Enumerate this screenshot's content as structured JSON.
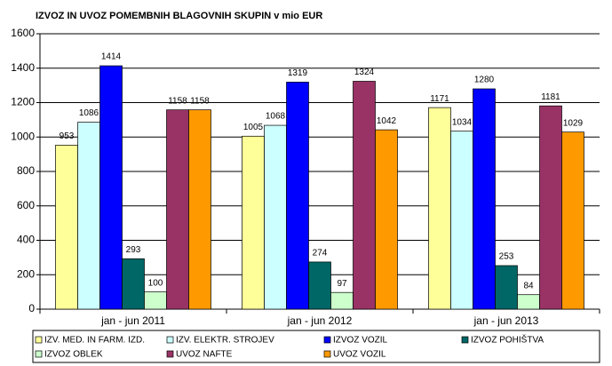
{
  "chart_data": {
    "type": "bar",
    "title": "IZVOZ IN UVOZ POMEMBNIH BLAGOVNIH SKUPIN v mio EUR",
    "categories": [
      "jan - jun 2011",
      "jan - jun 2012",
      "jan - jun 2013"
    ],
    "series": [
      {
        "name": "IZV. MED. IN FARM. IZD.",
        "color": "#ffff99",
        "values": [
          953,
          1005,
          1171
        ]
      },
      {
        "name": "IZV. ELEKTR. STROJEV",
        "color": "#ccffff",
        "values": [
          1086,
          1068,
          1034
        ]
      },
      {
        "name": "IZVOZ VOZIL",
        "color": "#0000ff",
        "values": [
          1414,
          1319,
          1280
        ]
      },
      {
        "name": "IZVOZ POHIŠTVA",
        "color": "#006666",
        "values": [
          293,
          274,
          253
        ]
      },
      {
        "name": "IZVOZ OBLEK",
        "color": "#ccffcc",
        "values": [
          100,
          97,
          84
        ]
      },
      {
        "name": "UVOZ NAFTE",
        "color": "#993366",
        "values": [
          1158,
          1324,
          1181
        ]
      },
      {
        "name": "UVOZ VOZIL",
        "color": "#ff9900",
        "values": [
          1158,
          1042,
          1029
        ]
      }
    ],
    "ylim": [
      0,
      1600
    ],
    "yticks": [
      0,
      200,
      400,
      600,
      800,
      1000,
      1200,
      1400,
      1600
    ],
    "grid": true
  }
}
